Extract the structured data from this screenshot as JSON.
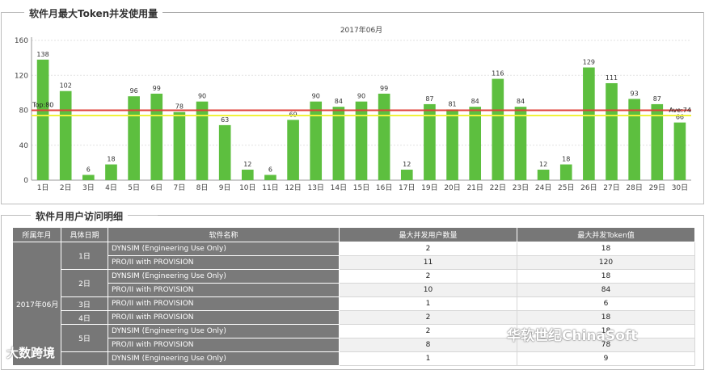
{
  "panel1": {
    "title": "软件月最大Token并发使用量"
  },
  "panel2": {
    "title": "软件月用户访问明细"
  },
  "chart_data": {
    "type": "bar",
    "title": "2017年06月",
    "categories": [
      "1日",
      "2日",
      "3日",
      "4日",
      "5日",
      "6日",
      "7日",
      "8日",
      "9日",
      "10日",
      "11日",
      "12日",
      "13日",
      "14日",
      "15日",
      "16日",
      "17日",
      "19日",
      "20日",
      "21日",
      "22日",
      "23日",
      "24日",
      "25日",
      "26日",
      "27日",
      "28日",
      "29日",
      "30日"
    ],
    "values": [
      138,
      102,
      6,
      18,
      96,
      99,
      78,
      90,
      63,
      12,
      6,
      69,
      90,
      84,
      90,
      99,
      12,
      87,
      81,
      84,
      116,
      84,
      12,
      18,
      129,
      111,
      93,
      87,
      66
    ],
    "ylim": [
      0,
      160
    ],
    "yticks": [
      0,
      40,
      80,
      120,
      160
    ],
    "bar_color": "#5dbf3f",
    "grid": true,
    "reference_lines": [
      {
        "label": "Top:80",
        "value": 80,
        "color": "#e0403a"
      },
      {
        "label": "Ave:74",
        "value": 74,
        "color": "#f0f23a"
      }
    ]
  },
  "table": {
    "headers": [
      "所属年月",
      "具体日期",
      "软件名称",
      "最大并发用户数量",
      "最大并发Token值"
    ],
    "month": "2017年06月",
    "groups": [
      {
        "date": "1日",
        "rows": [
          {
            "software": "DYNSIM (Engineering Use Only)",
            "users": "2",
            "tokens": "18"
          },
          {
            "software": "PRO/II with PROVISION",
            "users": "11",
            "tokens": "120"
          }
        ]
      },
      {
        "date": "2日",
        "rows": [
          {
            "software": "DYNSIM (Engineering Use Only)",
            "users": "2",
            "tokens": "18"
          },
          {
            "software": "PRO/II with PROVISION",
            "users": "10",
            "tokens": "84"
          }
        ]
      },
      {
        "date": "3日",
        "rows": [
          {
            "software": "PRO/II with PROVISION",
            "users": "1",
            "tokens": "6"
          }
        ]
      },
      {
        "date": "4日",
        "rows": [
          {
            "software": "PRO/II with PROVISION",
            "users": "2",
            "tokens": "18"
          }
        ]
      },
      {
        "date": "5日",
        "rows": [
          {
            "software": "DYNSIM (Engineering Use Only)",
            "users": "2",
            "tokens": "18"
          },
          {
            "software": "PRO/II with PROVISION",
            "users": "8",
            "tokens": "78"
          }
        ]
      },
      {
        "date": "",
        "rows": [
          {
            "software": "DYNSIM (Engineering Use Only)",
            "users": "1",
            "tokens": "9"
          }
        ]
      }
    ]
  },
  "watermarks": {
    "left": "大数跨境",
    "right": "华软世纪ChinaSoft"
  }
}
